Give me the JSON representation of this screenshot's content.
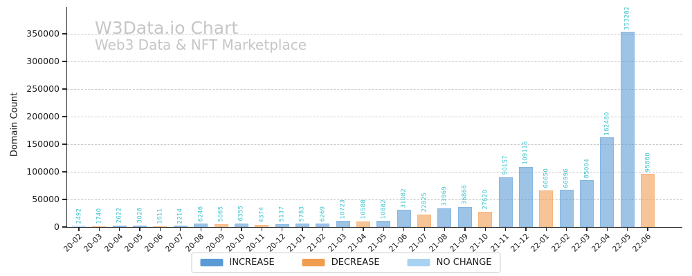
{
  "chart_data": {
    "type": "bar",
    "title": "W3Data.io Chart",
    "subtitle": "Web3 Data & NFT Marketplace",
    "xlabel": "",
    "ylabel": "Domain Count",
    "ylim": [
      0,
      380000
    ],
    "yticks": [
      0,
      50000,
      100000,
      150000,
      200000,
      250000,
      300000,
      350000
    ],
    "grid": true,
    "legend_position": "bottom-center",
    "categories": [
      "20-02",
      "20-03",
      "20-04",
      "20-05",
      "20-06",
      "20-07",
      "20-08",
      "20-09",
      "20-10",
      "20-11",
      "20-12",
      "21-01",
      "21-02",
      "21-03",
      "21-04",
      "21-05",
      "21-06",
      "21-07",
      "21-08",
      "21-09",
      "21-10",
      "21-11",
      "21-12",
      "22-01",
      "22-02",
      "22-03",
      "22-04",
      "22-05",
      "22-06"
    ],
    "values": [
      2492,
      1740,
      2622,
      3028,
      1611,
      2214,
      6246,
      5065,
      6355,
      4374,
      5137,
      5783,
      6269,
      10723,
      10588,
      10882,
      31082,
      22825,
      33969,
      36868,
      27620,
      90157,
      109115,
      66650,
      66996,
      85004,
      162480,
      353282,
      95860
    ],
    "statuses": [
      "no_change",
      "decrease",
      "increase",
      "increase",
      "decrease",
      "increase",
      "increase",
      "decrease",
      "increase",
      "decrease",
      "increase",
      "increase",
      "increase",
      "increase",
      "decrease",
      "increase",
      "increase",
      "decrease",
      "increase",
      "increase",
      "decrease",
      "increase",
      "increase",
      "decrease",
      "increase",
      "increase",
      "increase",
      "increase",
      "decrease"
    ],
    "legend": [
      {
        "label": "INCREASE",
        "key": "increase",
        "color": "#5b9bd5"
      },
      {
        "label": "DECREASE",
        "key": "decrease",
        "color": "#f09d50"
      },
      {
        "label": "NO CHANGE",
        "key": "no_change",
        "color": "#a8d2f2"
      }
    ],
    "colors": {
      "value_label": "#3ec4cc",
      "grid": "#c9c9c9",
      "axis": "#262626",
      "title": "#c6c6c6",
      "tick_label": "#1a1a1a",
      "bar_fill_alpha": 0.6
    }
  }
}
